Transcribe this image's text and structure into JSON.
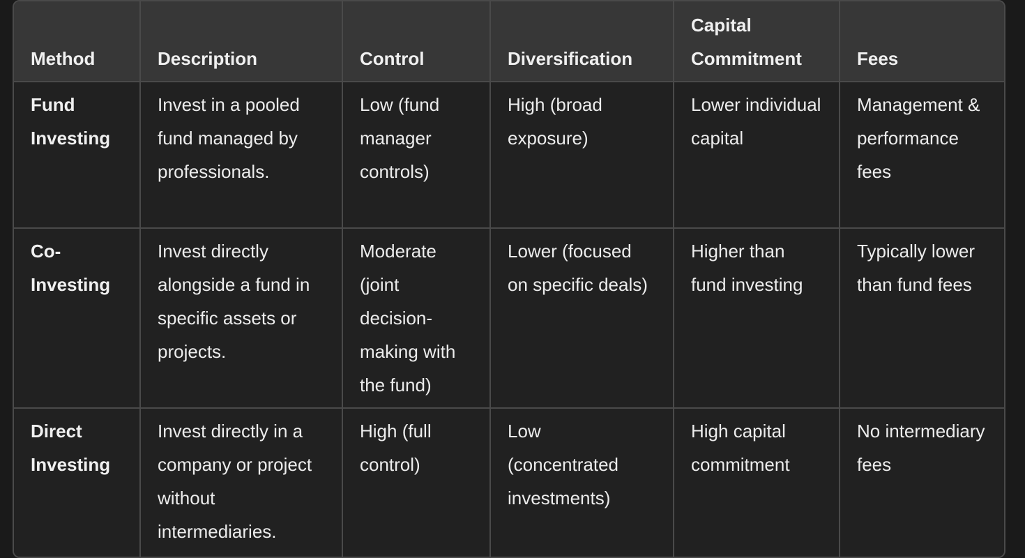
{
  "table": {
    "headers": [
      "Method",
      "Description",
      "Control",
      "Diversification",
      "Capital Commitment",
      "Fees"
    ],
    "rows": [
      [
        "Fund Investing",
        "Invest in a pooled fund managed by professionals.",
        "Low (fund manager controls)",
        "High (broad exposure)",
        "Lower individual capital",
        "Management & performance fees"
      ],
      [
        "Co-Investing",
        "Invest directly alongside a fund in specific assets or projects.",
        "Moderate (joint decision-making with the fund)",
        "Lower (focused on specific deals)",
        "Higher than fund investing",
        "Typically lower than fund fees"
      ],
      [
        "Direct Investing",
        "Invest directly in a company or project without intermediaries.",
        "High (full control)",
        "Low (concentrated investments)",
        "High capital commitment",
        "No intermediary fees"
      ]
    ]
  }
}
